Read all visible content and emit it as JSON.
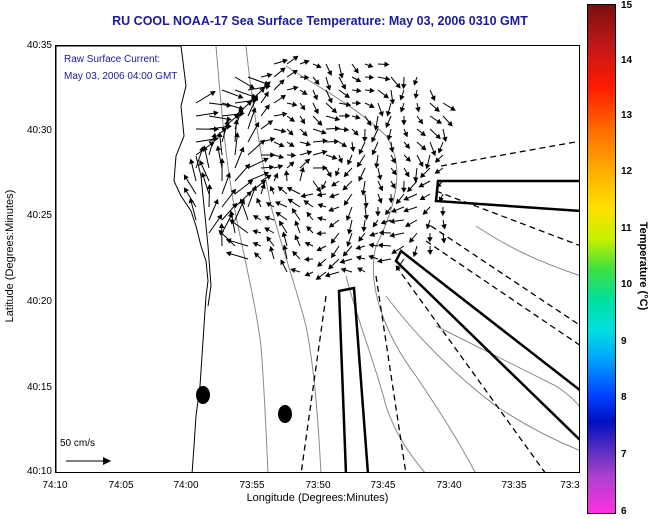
{
  "title": "RU COOL  NOAA-17  Sea Surface Temperature:  May 03, 2006 0310 GMT",
  "overlay": {
    "line1": "Raw Surface Current:",
    "line2": "May 03, 2006 04:00 GMT"
  },
  "axes": {
    "xlabel": "Longitude (Degrees:Minutes)",
    "ylabel": "Latitude (Degrees:Minutes)",
    "x_ticks": [
      "74:10",
      "74:05",
      "74:00",
      "73:55",
      "73:50",
      "73:45",
      "73:40",
      "73:35",
      "73:3"
    ],
    "y_ticks": [
      "40:35",
      "40:30",
      "40:25",
      "40:20",
      "40:15",
      "40:10"
    ]
  },
  "scale": {
    "label": "50 cm/s"
  },
  "colorbar": {
    "label": "Temperature (°C)",
    "ticks": [
      "15",
      "14",
      "13",
      "12",
      "11",
      "10",
      "9",
      "8",
      "7",
      "6"
    ]
  },
  "colors": {
    "title": "#1a1aa0",
    "coastline": "#000000",
    "bathymetry": "#888888"
  }
}
